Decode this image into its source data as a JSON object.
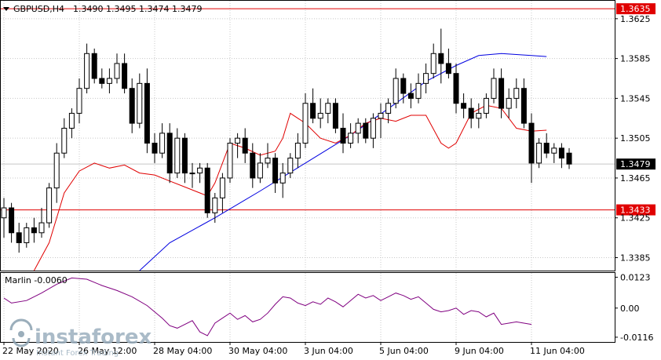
{
  "header": {
    "symbol": "GBPUSD,H4",
    "ohlc": "1.3490 1.3495 1.3474 1.3479"
  },
  "indicator": {
    "label": "Marlin -0.0060",
    "ticks": [
      "0.0123",
      "0.00",
      "-0.0116"
    ]
  },
  "colors": {
    "candle": "#000000",
    "level_line": "#e00000",
    "ma_fast": "#e00000",
    "ma_slow": "#0000e0",
    "oscillator": "#800080",
    "grid": "#c8c8c8"
  },
  "watermark": {
    "brand": "instaforex",
    "tagline": "Instant Forex Trading"
  },
  "chart_data": {
    "type": "candlestick",
    "y_ticks": [
      "1.3625",
      "1.3585",
      "1.3545",
      "1.3505",
      "1.3465",
      "1.3425",
      "1.3385"
    ],
    "y_tick_values": [
      1.3625,
      1.3585,
      1.3545,
      1.3505,
      1.3465,
      1.3425,
      1.3385
    ],
    "ylim": [
      1.3372,
      1.3643
    ],
    "x_labels": [
      "22 May 2020",
      "26 May 12:00",
      "28 May 04:00",
      "30 May 04:00",
      "3 Jun 04:00",
      "5 Jun 04:00",
      "9 Jun 04:00",
      "11 Jun 04:00"
    ],
    "x_label_bars": [
      0,
      10,
      20,
      30,
      40,
      50,
      60,
      70
    ],
    "levels": [
      {
        "label": "1.3635",
        "value": 1.3635
      },
      {
        "label": "1.3433",
        "value": 1.3433
      }
    ],
    "current_price": {
      "label": "1.3479",
      "value": 1.3479
    },
    "candles": [
      [
        1.3425,
        1.3445,
        1.3405,
        1.3435
      ],
      [
        1.3435,
        1.344,
        1.34,
        1.341
      ],
      [
        1.341,
        1.342,
        1.339,
        1.34
      ],
      [
        1.34,
        1.342,
        1.3395,
        1.3415
      ],
      [
        1.3415,
        1.3425,
        1.34,
        1.341
      ],
      [
        1.341,
        1.3435,
        1.3405,
        1.342
      ],
      [
        1.342,
        1.346,
        1.3415,
        1.3455
      ],
      [
        1.3455,
        1.35,
        1.344,
        1.349
      ],
      [
        1.349,
        1.3525,
        1.3485,
        1.3515
      ],
      [
        1.3515,
        1.3535,
        1.3505,
        1.353
      ],
      [
        1.353,
        1.3565,
        1.352,
        1.3555
      ],
      [
        1.3555,
        1.36,
        1.355,
        1.359
      ],
      [
        1.359,
        1.3595,
        1.356,
        1.3565
      ],
      [
        1.3565,
        1.3575,
        1.3555,
        1.356
      ],
      [
        1.356,
        1.3575,
        1.355,
        1.3565
      ],
      [
        1.3565,
        1.359,
        1.356,
        1.358
      ],
      [
        1.358,
        1.359,
        1.355,
        1.3555
      ],
      [
        1.3555,
        1.3565,
        1.351,
        1.352
      ],
      [
        1.352,
        1.357,
        1.3515,
        1.356
      ],
      [
        1.356,
        1.3575,
        1.349,
        1.35
      ],
      [
        1.35,
        1.351,
        1.348,
        1.349
      ],
      [
        1.349,
        1.352,
        1.3485,
        1.351
      ],
      [
        1.351,
        1.352,
        1.346,
        1.347
      ],
      [
        1.347,
        1.3515,
        1.3465,
        1.3505
      ],
      [
        1.3505,
        1.351,
        1.346,
        1.347
      ],
      [
        1.347,
        1.348,
        1.3455,
        1.347
      ],
      [
        1.347,
        1.348,
        1.346,
        1.3475
      ],
      [
        1.3475,
        1.348,
        1.3425,
        1.343
      ],
      [
        1.343,
        1.345,
        1.342,
        1.3445
      ],
      [
        1.3445,
        1.347,
        1.343,
        1.3465
      ],
      [
        1.3465,
        1.3505,
        1.346,
        1.35
      ],
      [
        1.35,
        1.351,
        1.3485,
        1.3505
      ],
      [
        1.3505,
        1.3515,
        1.348,
        1.349
      ],
      [
        1.349,
        1.35,
        1.3455,
        1.3465
      ],
      [
        1.3465,
        1.349,
        1.346,
        1.348
      ],
      [
        1.348,
        1.35,
        1.3475,
        1.3485
      ],
      [
        1.3485,
        1.349,
        1.345,
        1.346
      ],
      [
        1.346,
        1.348,
        1.3445,
        1.347
      ],
      [
        1.347,
        1.349,
        1.3465,
        1.3485
      ],
      [
        1.3485,
        1.351,
        1.3475,
        1.35
      ],
      [
        1.35,
        1.355,
        1.3495,
        1.354
      ],
      [
        1.354,
        1.3555,
        1.352,
        1.3525
      ],
      [
        1.3525,
        1.3545,
        1.3515,
        1.353
      ],
      [
        1.353,
        1.3545,
        1.352,
        1.354
      ],
      [
        1.354,
        1.3545,
        1.351,
        1.3515
      ],
      [
        1.3515,
        1.353,
        1.349,
        1.35
      ],
      [
        1.35,
        1.352,
        1.3495,
        1.351
      ],
      [
        1.351,
        1.3525,
        1.35,
        1.352
      ],
      [
        1.352,
        1.3525,
        1.35,
        1.3505
      ],
      [
        1.3505,
        1.353,
        1.3495,
        1.3525
      ],
      [
        1.3525,
        1.354,
        1.3505,
        1.353
      ],
      [
        1.353,
        1.3545,
        1.352,
        1.354
      ],
      [
        1.354,
        1.3575,
        1.3535,
        1.3565
      ],
      [
        1.3565,
        1.357,
        1.354,
        1.355
      ],
      [
        1.355,
        1.356,
        1.3535,
        1.3545
      ],
      [
        1.3545,
        1.357,
        1.354,
        1.356
      ],
      [
        1.356,
        1.358,
        1.355,
        1.357
      ],
      [
        1.357,
        1.36,
        1.3565,
        1.359
      ],
      [
        1.359,
        1.3615,
        1.356,
        1.358
      ],
      [
        1.358,
        1.3595,
        1.3565,
        1.357
      ],
      [
        1.357,
        1.358,
        1.353,
        1.354
      ],
      [
        1.354,
        1.355,
        1.3525,
        1.3535
      ],
      [
        1.3535,
        1.3545,
        1.3515,
        1.3525
      ],
      [
        1.3525,
        1.354,
        1.3515,
        1.353
      ],
      [
        1.353,
        1.355,
        1.3525,
        1.3545
      ],
      [
        1.3545,
        1.3575,
        1.354,
        1.3565
      ],
      [
        1.3565,
        1.3575,
        1.3525,
        1.3535
      ],
      [
        1.3535,
        1.3555,
        1.3525,
        1.3545
      ],
      [
        1.3545,
        1.3565,
        1.3535,
        1.3555
      ],
      [
        1.3555,
        1.3565,
        1.3515,
        1.352
      ],
      [
        1.352,
        1.353,
        1.346,
        1.348
      ],
      [
        1.348,
        1.3505,
        1.3475,
        1.35
      ],
      [
        1.35,
        1.351,
        1.3485,
        1.349
      ],
      [
        1.349,
        1.35,
        1.348,
        1.3495
      ],
      [
        1.3495,
        1.35,
        1.3475,
        1.3485
      ],
      [
        1.349,
        1.3495,
        1.3474,
        1.3479
      ]
    ],
    "ma_slow": [
      [
        18,
        1.3372
      ],
      [
        22,
        1.34
      ],
      [
        28,
        1.3425
      ],
      [
        34,
        1.3452
      ],
      [
        40,
        1.348
      ],
      [
        46,
        1.3508
      ],
      [
        52,
        1.354
      ],
      [
        56,
        1.3562
      ],
      [
        60,
        1.3578
      ],
      [
        63,
        1.3588
      ],
      [
        66,
        1.359
      ],
      [
        70,
        1.3588
      ],
      [
        72,
        1.3587
      ]
    ],
    "ma_fast": [
      [
        4,
        1.3372
      ],
      [
        6,
        1.34
      ],
      [
        8,
        1.345
      ],
      [
        10,
        1.3472
      ],
      [
        12,
        1.348
      ],
      [
        14,
        1.3475
      ],
      [
        16,
        1.3478
      ],
      [
        18,
        1.347
      ],
      [
        20,
        1.3468
      ],
      [
        22,
        1.3462
      ],
      [
        24,
        1.3456
      ],
      [
        26,
        1.345
      ],
      [
        27,
        1.3447
      ],
      [
        28,
        1.346
      ],
      [
        29,
        1.348
      ],
      [
        30,
        1.35
      ],
      [
        32,
        1.3495
      ],
      [
        34,
        1.3488
      ],
      [
        36,
        1.3492
      ],
      [
        37,
        1.3505
      ],
      [
        38,
        1.353
      ],
      [
        40,
        1.352
      ],
      [
        42,
        1.3505
      ],
      [
        44,
        1.35
      ],
      [
        46,
        1.3508
      ],
      [
        48,
        1.352
      ],
      [
        50,
        1.3525
      ],
      [
        52,
        1.3522
      ],
      [
        54,
        1.3528
      ],
      [
        56,
        1.3528
      ],
      [
        58,
        1.35
      ],
      [
        59,
        1.3495
      ],
      [
        60,
        1.35
      ],
      [
        62,
        1.353
      ],
      [
        64,
        1.3538
      ],
      [
        66,
        1.3535
      ],
      [
        68,
        1.3515
      ],
      [
        70,
        1.3512
      ],
      [
        72,
        1.3513
      ]
    ],
    "oscillator": {
      "ylim": [
        -0.0135,
        0.014
      ],
      "values": [
        [
          0,
          0.004
        ],
        [
          1,
          0.002
        ],
        [
          3,
          0.003
        ],
        [
          5,
          0.006
        ],
        [
          7,
          0.0095
        ],
        [
          9,
          0.012
        ],
        [
          11,
          0.0115
        ],
        [
          13,
          0.009
        ],
        [
          15,
          0.007
        ],
        [
          17,
          0.0045
        ],
        [
          19,
          0.001
        ],
        [
          21,
          -0.004
        ],
        [
          22,
          -0.007
        ],
        [
          23,
          -0.008
        ],
        [
          25,
          -0.005
        ],
        [
          26,
          -0.0095
        ],
        [
          27,
          -0.011
        ],
        [
          28,
          -0.006
        ],
        [
          29,
          -0.004
        ],
        [
          30,
          -0.002
        ],
        [
          31,
          -0.0045
        ],
        [
          32,
          -0.003
        ],
        [
          33,
          -0.0055
        ],
        [
          34,
          -0.0045
        ],
        [
          35,
          -0.002
        ],
        [
          36,
          0.0015
        ],
        [
          37,
          0.0045
        ],
        [
          38,
          0.004
        ],
        [
          39,
          0.002
        ],
        [
          40,
          0.001
        ],
        [
          41,
          0.0025
        ],
        [
          42,
          0.0015
        ],
        [
          43,
          0.004
        ],
        [
          44,
          0.0025
        ],
        [
          45,
          0.0005
        ],
        [
          46,
          0.003
        ],
        [
          47,
          0.0055
        ],
        [
          48,
          0.004
        ],
        [
          49,
          0.005
        ],
        [
          50,
          0.003
        ],
        [
          51,
          0.0045
        ],
        [
          52,
          0.006
        ],
        [
          53,
          0.005
        ],
        [
          54,
          0.0035
        ],
        [
          55,
          0.0045
        ],
        [
          56,
          0.002
        ],
        [
          57,
          -0.0005
        ],
        [
          58,
          -0.0015
        ],
        [
          59,
          -0.001
        ],
        [
          60,
          0.0
        ],
        [
          61,
          -0.0025
        ],
        [
          62,
          -0.001
        ],
        [
          63,
          -0.0015
        ],
        [
          64,
          -0.0035
        ],
        [
          65,
          -0.002
        ],
        [
          66,
          -0.0065
        ],
        [
          67,
          -0.006
        ],
        [
          68,
          -0.0055
        ],
        [
          69,
          -0.006
        ],
        [
          70,
          -0.0065
        ]
      ]
    }
  }
}
